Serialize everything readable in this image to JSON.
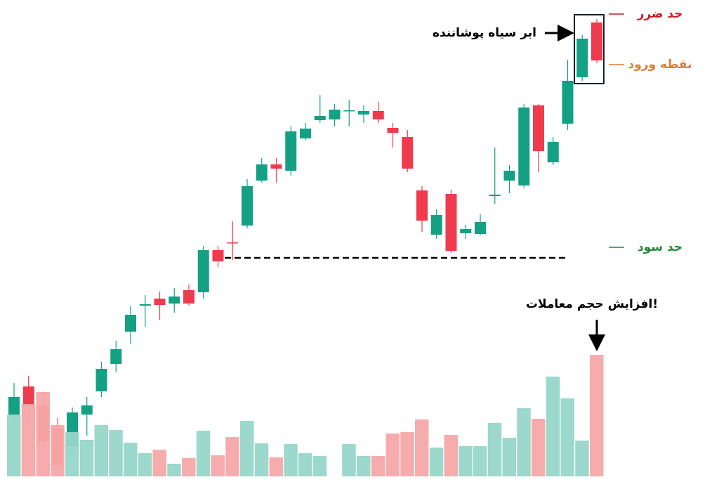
{
  "chart_data": [
    {
      "type": "candlestick",
      "open": [
        92,
        132,
        104,
        72,
        47,
        92,
        125,
        164,
        210,
        247,
        257,
        250,
        269,
        266,
        326,
        337,
        361,
        425,
        448,
        439,
        485,
        511,
        512,
        524,
        519,
        524,
        500,
        487,
        411,
        348,
        406,
        350,
        349,
        403,
        425,
        418,
        532,
        451,
        506,
        572,
        650
      ],
      "high": [
        137,
        147,
        122,
        87,
        102,
        117,
        167,
        197,
        247,
        262,
        267,
        272,
        277,
        332,
        332,
        367,
        427,
        457,
        457,
        502,
        507,
        547,
        534,
        540,
        532,
        537,
        507,
        497,
        417,
        384,
        412,
        362,
        377,
        472,
        447,
        534,
        534,
        487,
        597,
        632,
        655
      ],
      "low": [
        82,
        82,
        42,
        7,
        32,
        62,
        117,
        152,
        192,
        217,
        227,
        237,
        247,
        257,
        302,
        312,
        357,
        422,
        422,
        432,
        482,
        507,
        502,
        502,
        507,
        507,
        472,
        437,
        352,
        342,
        322,
        342,
        347,
        392,
        407,
        414,
        437,
        447,
        497,
        567,
        592
      ],
      "close": [
        117,
        104,
        54,
        20,
        95,
        105,
        157,
        185,
        234,
        249,
        248,
        260,
        250,
        326,
        310,
        336,
        417,
        448,
        442,
        495,
        499,
        517,
        526,
        525,
        524,
        512,
        493,
        442,
        368,
        376,
        325,
        356,
        366,
        405,
        439,
        529,
        467,
        480,
        567,
        627,
        596
      ],
      "up_color": "#14a082",
      "down_color": "#ef3b4d",
      "ylim": [
        0,
        682
      ],
      "dashed_line": 315,
      "pattern_label": "ابر سیاه پوشاننده",
      "annotations": [
        {
          "text": "حد ضرر",
          "value": 662,
          "color": "#c0232b"
        },
        {
          "text": "نقطه ورود",
          "value": 590,
          "color": "#e07b39"
        },
        {
          "text": "حد سود",
          "value": 330,
          "color": "#1f8a3a"
        }
      ]
    },
    {
      "type": "bar",
      "values": [
        88,
        103,
        120,
        73,
        63,
        52,
        73,
        66,
        48,
        33,
        38,
        18,
        26,
        65,
        30,
        56,
        79,
        47,
        27,
        46,
        33,
        29,
        null,
        46,
        29,
        29,
        61,
        63,
        81,
        41,
        59,
        43,
        43,
        76,
        55,
        97,
        82,
        142,
        111,
        51,
        173
      ],
      "up_color": "#97d6c8",
      "down_color": "#f5a8a8",
      "ylim": [
        0,
        200
      ],
      "annotation": "افزایش حجم معاملات!"
    }
  ]
}
